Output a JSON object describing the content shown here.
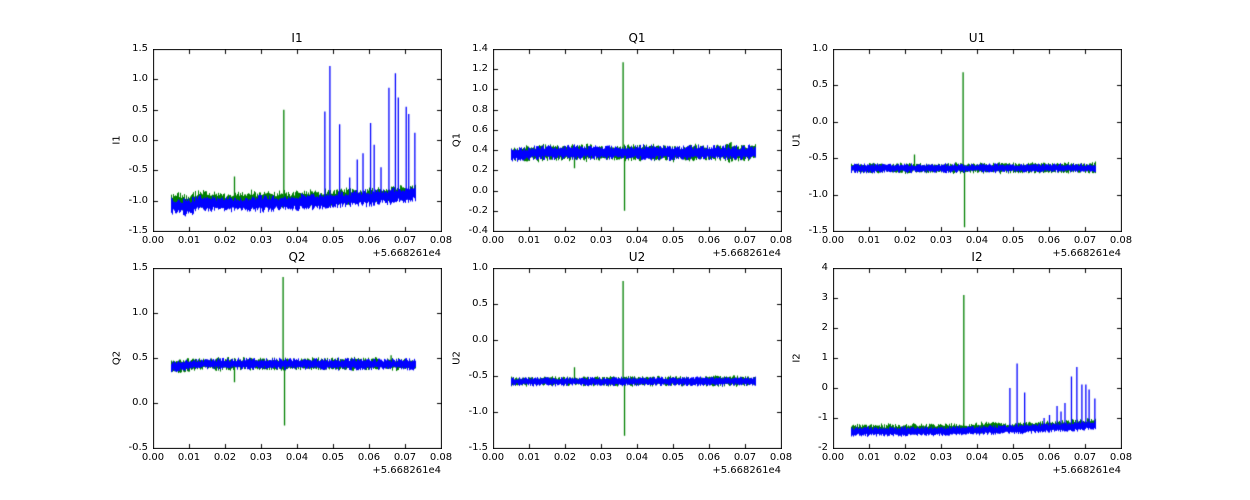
{
  "figure": {
    "background": "#ffffff",
    "grid": "off",
    "legend": "none"
  },
  "colors": {
    "series_green": "#008000",
    "series_blue": "#0000ff",
    "axis": "#000000",
    "background": "#ffffff"
  },
  "chart_data": [
    {
      "type": "line",
      "title": "I1",
      "ylabel": "I1",
      "xlabel": "",
      "xlim": [
        0,
        0.08
      ],
      "ylim": [
        -1.5,
        1.5
      ],
      "xticks": [
        0,
        0.01,
        0.02,
        0.03,
        0.04,
        0.05,
        0.06,
        0.07,
        0.08
      ],
      "xtick_labels": [
        "0.00",
        "0.01",
        "0.02",
        "0.03",
        "0.04",
        "0.05",
        "0.06",
        "0.07",
        "0.08"
      ],
      "yticks": [
        -1.5,
        -1.0,
        -0.5,
        0.0,
        0.5,
        1.0,
        1.5
      ],
      "ytick_labels": [
        "-1.5",
        "-1.0",
        "-0.5",
        "0.0",
        "0.5",
        "1.0",
        "1.5"
      ],
      "x_offset_label": "+5.668261e4",
      "x_range": [
        0.005,
        0.073
      ],
      "series": [
        {
          "name": "green",
          "color_key": "series_green",
          "base": [
            [
              0.005,
              -1.02
            ],
            [
              0.01,
              -1.06
            ],
            [
              0.013,
              -0.99
            ],
            [
              0.02,
              -1.02
            ],
            [
              0.035,
              -1.0
            ],
            [
              0.05,
              -0.96
            ],
            [
              0.065,
              -0.91
            ],
            [
              0.073,
              -0.86
            ]
          ],
          "amp_up": 0.14,
          "amp_down": 0.1,
          "spikes": [
            [
              0.0225,
              -0.6
            ],
            [
              0.0362,
              0.5
            ]
          ]
        },
        {
          "name": "blue",
          "color_key": "series_blue",
          "base": [
            [
              0.005,
              -1.08
            ],
            [
              0.01,
              -1.11
            ],
            [
              0.013,
              -1.03
            ],
            [
              0.02,
              -1.06
            ],
            [
              0.035,
              -1.04
            ],
            [
              0.05,
              -0.99
            ],
            [
              0.065,
              -0.93
            ],
            [
              0.073,
              -0.88
            ]
          ],
          "amp_up": 0.12,
          "amp_down": 0.13,
          "spikes": [
            [
              0.0476,
              0.47
            ],
            [
              0.049,
              1.22
            ],
            [
              0.0517,
              0.26
            ],
            [
              0.0545,
              -0.62
            ],
            [
              0.0566,
              -0.32
            ],
            [
              0.0582,
              -0.22
            ],
            [
              0.0603,
              0.28
            ],
            [
              0.0613,
              -0.08
            ],
            [
              0.0632,
              -0.45
            ],
            [
              0.0654,
              0.86
            ],
            [
              0.0672,
              1.1
            ],
            [
              0.068,
              0.7
            ],
            [
              0.0702,
              0.55
            ],
            [
              0.0709,
              0.43
            ],
            [
              0.0726,
              0.12
            ]
          ]
        }
      ]
    },
    {
      "type": "line",
      "title": "Q1",
      "ylabel": "Q1",
      "xlabel": "",
      "xlim": [
        0,
        0.08
      ],
      "ylim": [
        -0.4,
        1.4
      ],
      "xticks": [
        0,
        0.01,
        0.02,
        0.03,
        0.04,
        0.05,
        0.06,
        0.07,
        0.08
      ],
      "xtick_labels": [
        "0.00",
        "0.01",
        "0.02",
        "0.03",
        "0.04",
        "0.05",
        "0.06",
        "0.07",
        "0.08"
      ],
      "yticks": [
        -0.4,
        -0.2,
        0.0,
        0.2,
        0.4,
        0.6,
        0.8,
        1.0,
        1.2,
        1.4
      ],
      "ytick_labels": [
        "-0.4",
        "-0.2",
        "0.0",
        "0.2",
        "0.4",
        "0.6",
        "0.8",
        "1.0",
        "1.2",
        "1.4"
      ],
      "x_offset_label": "+5.668261e4",
      "x_range": [
        0.005,
        0.073
      ],
      "series": [
        {
          "name": "green",
          "color_key": "series_green",
          "base": [
            [
              0.005,
              0.355
            ],
            [
              0.012,
              0.372
            ],
            [
              0.073,
              0.368
            ]
          ],
          "amp_up": 0.075,
          "amp_down": 0.07,
          "spikes": [
            [
              0.0225,
              0.22
            ],
            [
              0.036,
              1.27
            ],
            [
              0.0364,
              -0.2
            ],
            [
              0.066,
              0.48
            ]
          ]
        },
        {
          "name": "blue",
          "color_key": "series_blue",
          "base": [
            [
              0.005,
              0.352
            ],
            [
              0.012,
              0.375
            ],
            [
              0.073,
              0.372
            ]
          ],
          "amp_up": 0.07,
          "amp_down": 0.065,
          "spikes": []
        }
      ]
    },
    {
      "type": "line",
      "title": "U1",
      "ylabel": "U1",
      "xlabel": "",
      "xlim": [
        0,
        0.08
      ],
      "ylim": [
        -1.5,
        1.0
      ],
      "xticks": [
        0,
        0.01,
        0.02,
        0.03,
        0.04,
        0.05,
        0.06,
        0.07,
        0.08
      ],
      "xtick_labels": [
        "0.00",
        "0.01",
        "0.02",
        "0.03",
        "0.04",
        "0.05",
        "0.06",
        "0.07",
        "0.08"
      ],
      "yticks": [
        -1.5,
        -1.0,
        -0.5,
        0.0,
        0.5,
        1.0
      ],
      "ytick_labels": [
        "-1.5",
        "-1.0",
        "-0.5",
        "0.0",
        "0.5",
        "1.0"
      ],
      "x_offset_label": "+5.668261e4",
      "x_range": [
        0.005,
        0.073
      ],
      "series": [
        {
          "name": "green",
          "color_key": "series_green",
          "base": [
            [
              0.005,
              -0.635
            ],
            [
              0.073,
              -0.63
            ]
          ],
          "amp_up": 0.06,
          "amp_down": 0.065,
          "spikes": [
            [
              0.0225,
              -0.45
            ],
            [
              0.036,
              0.68
            ],
            [
              0.0364,
              -1.45
            ]
          ]
        },
        {
          "name": "blue",
          "color_key": "series_blue",
          "base": [
            [
              0.005,
              -0.638
            ],
            [
              0.073,
              -0.632
            ]
          ],
          "amp_up": 0.055,
          "amp_down": 0.06,
          "spikes": []
        }
      ]
    },
    {
      "type": "line",
      "title": "Q2",
      "ylabel": "Q2",
      "xlabel": "",
      "xlim": [
        0,
        0.08
      ],
      "ylim": [
        -0.5,
        1.5
      ],
      "xticks": [
        0,
        0.01,
        0.02,
        0.03,
        0.04,
        0.05,
        0.06,
        0.07,
        0.08
      ],
      "xtick_labels": [
        "0.00",
        "0.01",
        "0.02",
        "0.03",
        "0.04",
        "0.05",
        "0.06",
        "0.07",
        "0.08"
      ],
      "yticks": [
        -0.5,
        0.0,
        0.5,
        1.0,
        1.5
      ],
      "ytick_labels": [
        "-0.5",
        "0.0",
        "0.5",
        "1.0",
        "1.5"
      ],
      "x_offset_label": "+5.668261e4",
      "x_range": [
        0.005,
        0.073
      ],
      "series": [
        {
          "name": "green",
          "color_key": "series_green",
          "base": [
            [
              0.005,
              0.4
            ],
            [
              0.013,
              0.43
            ],
            [
              0.073,
              0.43
            ]
          ],
          "amp_up": 0.065,
          "amp_down": 0.06,
          "spikes": [
            [
              0.0225,
              0.23
            ],
            [
              0.036,
              1.4
            ],
            [
              0.0364,
              -0.25
            ],
            [
              0.066,
              0.53
            ]
          ]
        },
        {
          "name": "blue",
          "color_key": "series_blue",
          "base": [
            [
              0.005,
              0.4
            ],
            [
              0.013,
              0.435
            ],
            [
              0.073,
              0.43
            ]
          ],
          "amp_up": 0.06,
          "amp_down": 0.058,
          "spikes": []
        }
      ]
    },
    {
      "type": "line",
      "title": "U2",
      "ylabel": "U2",
      "xlabel": "",
      "xlim": [
        0,
        0.08
      ],
      "ylim": [
        -1.5,
        1.0
      ],
      "xticks": [
        0,
        0.01,
        0.02,
        0.03,
        0.04,
        0.05,
        0.06,
        0.07,
        0.08
      ],
      "xtick_labels": [
        "0.00",
        "0.01",
        "0.02",
        "0.03",
        "0.04",
        "0.05",
        "0.06",
        "0.07",
        "0.08"
      ],
      "yticks": [
        -1.5,
        -1.0,
        -0.5,
        0.0,
        0.5,
        1.0
      ],
      "ytick_labels": [
        "-1.5",
        "-1.0",
        "-0.5",
        "0.0",
        "0.5",
        "1.0"
      ],
      "x_offset_label": "+5.668261e4",
      "x_range": [
        0.005,
        0.073
      ],
      "series": [
        {
          "name": "green",
          "color_key": "series_green",
          "base": [
            [
              0.005,
              -0.575
            ],
            [
              0.073,
              -0.57
            ]
          ],
          "amp_up": 0.06,
          "amp_down": 0.062,
          "spikes": [
            [
              0.0225,
              -0.38
            ],
            [
              0.036,
              0.82
            ],
            [
              0.0364,
              -1.33
            ]
          ]
        },
        {
          "name": "blue",
          "color_key": "series_blue",
          "base": [
            [
              0.005,
              -0.578
            ],
            [
              0.073,
              -0.572
            ]
          ],
          "amp_up": 0.055,
          "amp_down": 0.058,
          "spikes": []
        }
      ]
    },
    {
      "type": "line",
      "title": "I2",
      "ylabel": "I2",
      "xlabel": "",
      "xlim": [
        0,
        0.08
      ],
      "ylim": [
        -2,
        4
      ],
      "xticks": [
        0,
        0.01,
        0.02,
        0.03,
        0.04,
        0.05,
        0.06,
        0.07,
        0.08
      ],
      "xtick_labels": [
        "0.00",
        "0.01",
        "0.02",
        "0.03",
        "0.04",
        "0.05",
        "0.06",
        "0.07",
        "0.08"
      ],
      "yticks": [
        -2,
        -1,
        0,
        1,
        2,
        3,
        4
      ],
      "ytick_labels": [
        "-2",
        "-1",
        "0",
        "1",
        "2",
        "3",
        "4"
      ],
      "x_offset_label": "+5.668261e4",
      "x_range": [
        0.005,
        0.073
      ],
      "series": [
        {
          "name": "green",
          "color_key": "series_green",
          "base": [
            [
              0.005,
              -1.4
            ],
            [
              0.02,
              -1.4
            ],
            [
              0.035,
              -1.38
            ],
            [
              0.05,
              -1.34
            ],
            [
              0.06,
              -1.29
            ],
            [
              0.073,
              -1.21
            ]
          ],
          "amp_up": 0.2,
          "amp_down": 0.12,
          "spikes": [
            [
              0.0362,
              3.1
            ]
          ]
        },
        {
          "name": "blue",
          "color_key": "series_blue",
          "base": [
            [
              0.005,
              -1.46
            ],
            [
              0.02,
              -1.45
            ],
            [
              0.035,
              -1.43
            ],
            [
              0.05,
              -1.38
            ],
            [
              0.06,
              -1.33
            ],
            [
              0.073,
              -1.24
            ]
          ],
          "amp_up": 0.15,
          "amp_down": 0.15,
          "spikes": [
            [
              0.049,
              0.0
            ],
            [
              0.051,
              0.82
            ],
            [
              0.0531,
              -0.15
            ],
            [
              0.0585,
              -1.0
            ],
            [
              0.06,
              -0.9
            ],
            [
              0.0621,
              -0.6
            ],
            [
              0.0632,
              -0.78
            ],
            [
              0.0643,
              -0.5
            ],
            [
              0.0661,
              0.38
            ],
            [
              0.0676,
              0.7
            ],
            [
              0.069,
              0.12
            ],
            [
              0.0701,
              0.12
            ],
            [
              0.071,
              -0.05
            ],
            [
              0.0726,
              -0.35
            ]
          ]
        }
      ]
    }
  ]
}
